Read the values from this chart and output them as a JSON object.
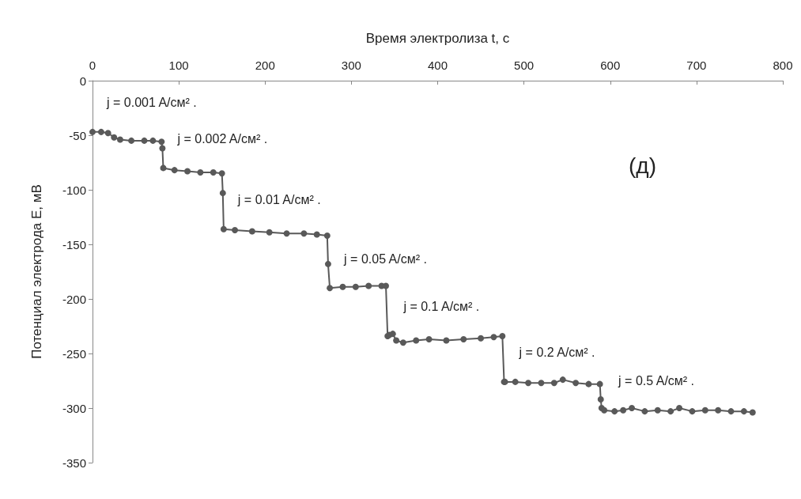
{
  "chart_data": {
    "type": "line",
    "xlabel": "Время электролиза t, с",
    "ylabel": "Потенциал электрода E, мВ",
    "xlim": [
      0,
      800
    ],
    "xticks": [
      0,
      100,
      200,
      300,
      400,
      500,
      600,
      700,
      800
    ],
    "ylim": [
      -350,
      0
    ],
    "yticks": [
      -350,
      -300,
      -250,
      -200,
      -150,
      -100,
      -50,
      0
    ],
    "grid": false,
    "marker": "circle",
    "line_style": "solid",
    "series": [
      {
        "color": "#595959",
        "x": [
          0,
          10,
          18,
          25,
          32,
          45,
          60,
          70,
          80,
          81,
          82,
          95,
          110,
          125,
          140,
          150,
          151,
          152,
          165,
          185,
          205,
          225,
          245,
          260,
          272,
          273,
          275,
          290,
          305,
          320,
          335,
          340,
          342,
          344,
          348,
          352,
          360,
          375,
          390,
          410,
          430,
          450,
          465,
          475,
          477,
          478,
          490,
          505,
          520,
          535,
          545,
          560,
          575,
          588,
          589,
          590,
          593,
          605,
          615,
          625,
          640,
          655,
          670,
          680,
          695,
          710,
          725,
          740,
          755,
          765
        ],
        "values": [
          -47,
          -47,
          -48,
          -52,
          -54,
          -55,
          -55,
          -55,
          -56,
          -62,
          -80,
          -82,
          -83,
          -84,
          -84,
          -85,
          -103,
          -136,
          -137,
          -138,
          -139,
          -140,
          -140,
          -141,
          -142,
          -168,
          -190,
          -189,
          -189,
          -188,
          -188,
          -188,
          -234,
          -233,
          -232,
          -238,
          -240,
          -238,
          -237,
          -238,
          -237,
          -236,
          -235,
          -234,
          -276,
          -276,
          -276,
          -277,
          -277,
          -277,
          -274,
          -277,
          -278,
          -278,
          -292,
          -300,
          -302,
          -303,
          -302,
          -300,
          -303,
          -302,
          -303,
          -300,
          -303,
          -302,
          -302,
          -303,
          -303,
          -304
        ]
      }
    ],
    "annotations": [
      {
        "text": "j = 0.001 A/см² .",
        "x": 0,
        "y": -47
      },
      {
        "text": "j = 0.002 A/см² .",
        "x": 82,
        "y": -80
      },
      {
        "text": "j = 0.01 A/см² .",
        "x": 152,
        "y": -136
      },
      {
        "text": "j = 0.05 A/см² .",
        "x": 275,
        "y": -190
      },
      {
        "text": "j = 0.1 A/см² .",
        "x": 344,
        "y": -234
      },
      {
        "text": "j = 0.2 A/см² .",
        "x": 478,
        "y": -276
      },
      {
        "text": "j = 0.5 A/см² .",
        "x": 593,
        "y": -302
      },
      "(д)"
    ]
  }
}
